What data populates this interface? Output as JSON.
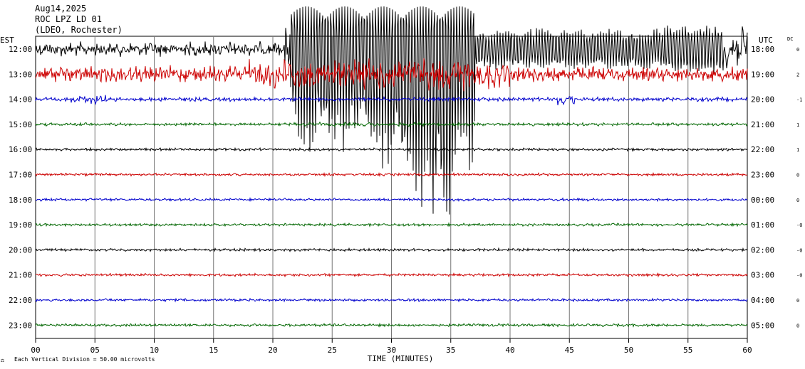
{
  "header": {
    "date": "Aug14,2025",
    "station": "ROC LPZ LD 01",
    "network": "(LDEO, Rochester)"
  },
  "axis": {
    "left_tz": "EST",
    "right_tz": "UTC",
    "dc_label": "DC",
    "xlabel": "TIME (MINUTES)",
    "footer": "Each Vertical Division =   50.00 microvolts"
  },
  "chart_data": {
    "type": "line",
    "title": "Aug14,2025 ROC LPZ LD 01 (LDEO, Rochester)",
    "xlabel": "TIME (MINUTES)",
    "xlim": [
      0,
      60
    ],
    "x_ticks": [
      "00",
      "05",
      "10",
      "15",
      "20",
      "25",
      "30",
      "35",
      "40",
      "45",
      "50",
      "55",
      "60"
    ],
    "grid": true,
    "trace_colors": [
      "#000000",
      "#cc0000",
      "#0000cc",
      "#006600"
    ],
    "rows": [
      {
        "est": "12:00",
        "utc": "18:00",
        "dc": "0",
        "color": "#000000",
        "noise": 1.0
      },
      {
        "est": "13:00",
        "utc": "19:00",
        "dc": "2",
        "color": "#cc0000",
        "noise": 1.0
      },
      {
        "est": "14:00",
        "utc": "20:00",
        "dc": "-1",
        "color": "#0000cc",
        "noise": 0.6
      },
      {
        "est": "15:00",
        "utc": "21:00",
        "dc": "1",
        "color": "#006600",
        "noise": 0.35
      },
      {
        "est": "16:00",
        "utc": "22:00",
        "dc": "1",
        "color": "#000000",
        "noise": 0.3
      },
      {
        "est": "17:00",
        "utc": "23:00",
        "dc": "0",
        "color": "#cc0000",
        "noise": 0.3
      },
      {
        "est": "18:00",
        "utc": "00:00",
        "dc": "0",
        "color": "#0000cc",
        "noise": 0.3
      },
      {
        "est": "19:00",
        "utc": "01:00",
        "dc": "-0",
        "color": "#006600",
        "noise": 0.3
      },
      {
        "est": "20:00",
        "utc": "02:00",
        "dc": "-0",
        "color": "#000000",
        "noise": 0.3
      },
      {
        "est": "21:00",
        "utc": "03:00",
        "dc": "-0",
        "color": "#cc0000",
        "noise": 0.3
      },
      {
        "est": "22:00",
        "utc": "04:00",
        "dc": "0",
        "color": "#0000cc",
        "noise": 0.3
      },
      {
        "est": "23:00",
        "utc": "05:00",
        "dc": "0",
        "color": "#006600",
        "noise": 0.3
      }
    ]
  }
}
